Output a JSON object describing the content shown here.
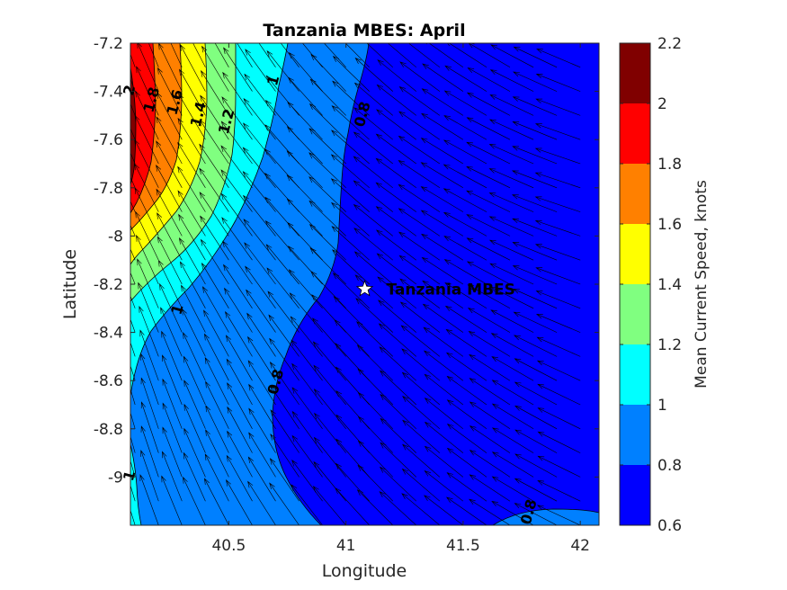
{
  "chart_data": {
    "type": "contour",
    "title": "Tanzania MBES: April",
    "xlabel": "Longitude",
    "ylabel": "Latitude",
    "xlim": [
      40.08,
      42.08
    ],
    "ylim": [
      -9.2,
      -7.2
    ],
    "xticks": [
      40.5,
      41,
      41.5,
      42
    ],
    "xtick_labels": [
      "40.5",
      "41",
      "41.5",
      "42"
    ],
    "yticks": [
      -7.2,
      -7.4,
      -7.6,
      -7.8,
      -8,
      -8.2,
      -8.4,
      -8.6,
      -8.8,
      -9
    ],
    "ytick_labels": [
      "-7.2",
      "-7.4",
      "-7.6",
      "-7.8",
      "-8",
      "-8.2",
      "-8.4",
      "-8.6",
      "-8.8",
      "-9"
    ],
    "colorbar": {
      "label": "Mean Current Speed, knots",
      "range": [
        0.6,
        2.2
      ],
      "ticks": [
        0.6,
        0.8,
        1,
        1.2,
        1.4,
        1.6,
        1.8,
        2,
        2.2
      ],
      "tick_labels": [
        "0.6",
        "0.8",
        "1",
        "1.2",
        "1.4",
        "1.6",
        "1.8",
        "2",
        "2.2"
      ],
      "colors": [
        "#0000ff",
        "#0080ff",
        "#00ffff",
        "#80ff80",
        "#ffff00",
        "#ff8000",
        "#ff0000",
        "#800000"
      ]
    },
    "contour_labels": [
      {
        "text": "2",
        "lon": 40.095,
        "lat": -7.4
      },
      {
        "text": "1.8",
        "lon": 40.19,
        "lat": -7.44
      },
      {
        "text": "1.6",
        "lon": 40.29,
        "lat": -7.45
      },
      {
        "text": "1.4",
        "lon": 40.39,
        "lat": -7.5
      },
      {
        "text": "1.2",
        "lon": 40.51,
        "lat": -7.53
      },
      {
        "text": "1",
        "lon": 40.71,
        "lat": -7.36
      },
      {
        "text": "0.8",
        "lon": 41.09,
        "lat": -7.5
      },
      {
        "text": "1",
        "lon": 40.3,
        "lat": -8.31
      },
      {
        "text": "0.8",
        "lon": 40.72,
        "lat": -8.61
      },
      {
        "text": "1",
        "lon": 40.095,
        "lat": -9.0
      },
      {
        "text": "0.8",
        "lon": 41.8,
        "lat": -9.15
      }
    ],
    "marker": {
      "label": "Tanzania MBES",
      "lon": 41.08,
      "lat": -8.22,
      "symbol": "star"
    },
    "vector_field": {
      "description": "mean current direction arrows",
      "spacing_deg": 0.1,
      "direction": "northwest"
    }
  }
}
